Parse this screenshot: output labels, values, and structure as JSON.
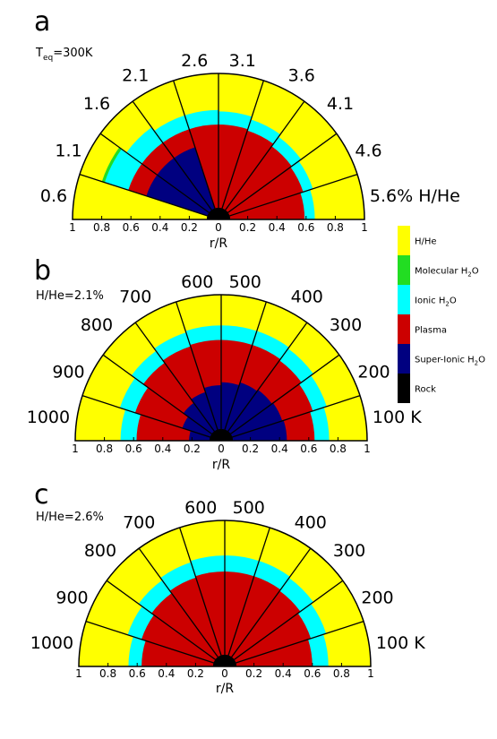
{
  "colors": {
    "hhe": "#ffff00",
    "molecular": "#22dd22",
    "ionic": "#00ffff",
    "plasma": "#cc0000",
    "superionic": "#000080",
    "rock": "#000000"
  },
  "legend": [
    {
      "key": "hhe",
      "label": "H/He"
    },
    {
      "key": "molecular",
      "label": "Molecular H",
      "sub": "2",
      "suffix": "O"
    },
    {
      "key": "ionic",
      "label": "Ionic H",
      "sub": "2",
      "suffix": "O"
    },
    {
      "key": "plasma",
      "label": "Plasma"
    },
    {
      "key": "superionic",
      "label": "Super-Ionic H",
      "sub": "2",
      "suffix": "O"
    },
    {
      "key": "rock",
      "label": "Rock"
    }
  ],
  "chart_data": [
    {
      "type": "polar-area",
      "panel_label": "a",
      "annotation": {
        "main": "T",
        "sub": "eq",
        "rest": "=300K"
      },
      "xlabel": "r/R",
      "tick_labels": [
        "1",
        "0.8",
        "0.6",
        "0.4",
        "0.2",
        "0",
        "0.2",
        "0.4",
        "0.6",
        "0.8",
        "1"
      ],
      "wedge_labels": [
        "0.6",
        "1.1",
        "1.6",
        "2.1",
        "2.6",
        "3.1",
        "3.6",
        "4.1",
        "4.6",
        "5.6% H/He"
      ],
      "wedges": [
        {
          "layers": [
            [
              "rock",
              0.08
            ],
            [
              "superionic",
              0.0
            ],
            [
              "plasma",
              0.0
            ],
            [
              "ionic",
              0.0
            ],
            [
              "molecular",
              0.0
            ],
            [
              "hhe",
              1.0
            ]
          ]
        },
        {
          "layers": [
            [
              "rock",
              0.08
            ],
            [
              "superionic",
              0.52
            ],
            [
              "plasma",
              0.65
            ],
            [
              "ionic",
              0.82
            ],
            [
              "molecular",
              0.84
            ],
            [
              "hhe",
              1.0
            ]
          ]
        },
        {
          "layers": [
            [
              "rock",
              0.08
            ],
            [
              "superionic",
              0.52
            ],
            [
              "plasma",
              0.65
            ],
            [
              "ionic",
              0.78
            ],
            [
              "hhe",
              1.0
            ]
          ]
        },
        {
          "layers": [
            [
              "rock",
              0.08
            ],
            [
              "superionic",
              0.52
            ],
            [
              "plasma",
              0.65
            ],
            [
              "ionic",
              0.75
            ],
            [
              "hhe",
              1.0
            ]
          ]
        },
        {
          "layers": [
            [
              "rock",
              0.08
            ],
            [
              "superionic",
              0.0
            ],
            [
              "plasma",
              0.65
            ],
            [
              "ionic",
              0.75
            ],
            [
              "hhe",
              1.0
            ]
          ]
        },
        {
          "layers": [
            [
              "rock",
              0.08
            ],
            [
              "plasma",
              0.65
            ],
            [
              "ionic",
              0.74
            ],
            [
              "hhe",
              1.0
            ]
          ]
        },
        {
          "layers": [
            [
              "rock",
              0.08
            ],
            [
              "plasma",
              0.64
            ],
            [
              "ionic",
              0.72
            ],
            [
              "hhe",
              1.0
            ]
          ]
        },
        {
          "layers": [
            [
              "rock",
              0.08
            ],
            [
              "plasma",
              0.62
            ],
            [
              "ionic",
              0.7
            ],
            [
              "hhe",
              1.0
            ]
          ]
        },
        {
          "layers": [
            [
              "rock",
              0.08
            ],
            [
              "plasma",
              0.61
            ],
            [
              "ionic",
              0.68
            ],
            [
              "hhe",
              1.0
            ]
          ]
        },
        {
          "layers": [
            [
              "rock",
              0.08
            ],
            [
              "plasma",
              0.59
            ],
            [
              "ionic",
              0.66
            ],
            [
              "hhe",
              1.0
            ]
          ]
        }
      ]
    },
    {
      "type": "polar-area",
      "panel_label": "b",
      "annotation": {
        "main": "H/He=2.1%"
      },
      "xlabel": "r/R",
      "tick_labels": [
        "1",
        "0.8",
        "0.6",
        "0.4",
        "0.2",
        "0",
        "0.2",
        "0.4",
        "0.6",
        "0.8",
        "1"
      ],
      "wedge_labels": [
        "1000",
        "900",
        "800",
        "700",
        "600",
        "500",
        "400",
        "300",
        "200",
        "100 K"
      ],
      "wedges": [
        {
          "layers": [
            [
              "rock",
              0.08
            ],
            [
              "superionic",
              0.22
            ],
            [
              "plasma",
              0.58
            ],
            [
              "ionic",
              0.69
            ],
            [
              "hhe",
              1.0
            ]
          ]
        },
        {
          "layers": [
            [
              "rock",
              0.08
            ],
            [
              "superionic",
              0.28
            ],
            [
              "plasma",
              0.62
            ],
            [
              "ionic",
              0.73
            ],
            [
              "hhe",
              1.0
            ]
          ]
        },
        {
          "layers": [
            [
              "rock",
              0.08
            ],
            [
              "superionic",
              0.32
            ],
            [
              "plasma",
              0.66
            ],
            [
              "ionic",
              0.76
            ],
            [
              "hhe",
              1.0
            ]
          ]
        },
        {
          "layers": [
            [
              "rock",
              0.08
            ],
            [
              "superionic",
              0.35
            ],
            [
              "plasma",
              0.68
            ],
            [
              "ionic",
              0.78
            ],
            [
              "hhe",
              1.0
            ]
          ]
        },
        {
          "layers": [
            [
              "rock",
              0.08
            ],
            [
              "superionic",
              0.38
            ],
            [
              "plasma",
              0.69
            ],
            [
              "ionic",
              0.79
            ],
            [
              "hhe",
              1.0
            ]
          ]
        },
        {
          "layers": [
            [
              "rock",
              0.08
            ],
            [
              "superionic",
              0.4
            ],
            [
              "plasma",
              0.69
            ],
            [
              "ionic",
              0.79
            ],
            [
              "hhe",
              1.0
            ]
          ]
        },
        {
          "layers": [
            [
              "rock",
              0.08
            ],
            [
              "superionic",
              0.42
            ],
            [
              "plasma",
              0.69
            ],
            [
              "ionic",
              0.79
            ],
            [
              "hhe",
              1.0
            ]
          ]
        },
        {
          "layers": [
            [
              "rock",
              0.08
            ],
            [
              "superionic",
              0.43
            ],
            [
              "plasma",
              0.68
            ],
            [
              "ionic",
              0.78
            ],
            [
              "hhe",
              1.0
            ]
          ]
        },
        {
          "layers": [
            [
              "rock",
              0.08
            ],
            [
              "superionic",
              0.44
            ],
            [
              "plasma",
              0.66
            ],
            [
              "ionic",
              0.76
            ],
            [
              "hhe",
              1.0
            ]
          ]
        },
        {
          "layers": [
            [
              "rock",
              0.08
            ],
            [
              "superionic",
              0.45
            ],
            [
              "plasma",
              0.64
            ],
            [
              "ionic",
              0.74
            ],
            [
              "hhe",
              1.0
            ]
          ]
        }
      ]
    },
    {
      "type": "polar-area",
      "panel_label": "c",
      "annotation": {
        "main": "H/He=2.6%"
      },
      "xlabel": "r/R",
      "tick_labels": [
        "1",
        "0.8",
        "0.6",
        "0.4",
        "0.2",
        "0",
        "0.2",
        "0.4",
        "0.6",
        "0.8",
        "1"
      ],
      "wedge_labels": [
        "1000",
        "900",
        "800",
        "700",
        "600",
        "500",
        "400",
        "300",
        "200",
        "100 K"
      ],
      "wedges": [
        {
          "layers": [
            [
              "rock",
              0.08
            ],
            [
              "plasma",
              0.57
            ],
            [
              "ionic",
              0.66
            ],
            [
              "hhe",
              1.0
            ]
          ]
        },
        {
          "layers": [
            [
              "rock",
              0.08
            ],
            [
              "plasma",
              0.6
            ],
            [
              "ionic",
              0.7
            ],
            [
              "hhe",
              1.0
            ]
          ]
        },
        {
          "layers": [
            [
              "rock",
              0.08
            ],
            [
              "plasma",
              0.62
            ],
            [
              "ionic",
              0.73
            ],
            [
              "hhe",
              1.0
            ]
          ]
        },
        {
          "layers": [
            [
              "rock",
              0.08
            ],
            [
              "plasma",
              0.64
            ],
            [
              "ionic",
              0.75
            ],
            [
              "hhe",
              1.0
            ]
          ]
        },
        {
          "layers": [
            [
              "rock",
              0.08
            ],
            [
              "plasma",
              0.65
            ],
            [
              "ionic",
              0.76
            ],
            [
              "hhe",
              1.0
            ]
          ]
        },
        {
          "layers": [
            [
              "rock",
              0.08
            ],
            [
              "plasma",
              0.65
            ],
            [
              "ionic",
              0.76
            ],
            [
              "hhe",
              1.0
            ]
          ]
        },
        {
          "layers": [
            [
              "rock",
              0.08
            ],
            [
              "plasma",
              0.65
            ],
            [
              "ionic",
              0.76
            ],
            [
              "hhe",
              1.0
            ]
          ]
        },
        {
          "layers": [
            [
              "rock",
              0.08
            ],
            [
              "plasma",
              0.64
            ],
            [
              "ionic",
              0.75
            ],
            [
              "hhe",
              1.0
            ]
          ]
        },
        {
          "layers": [
            [
              "rock",
              0.08
            ],
            [
              "plasma",
              0.62
            ],
            [
              "ionic",
              0.73
            ],
            [
              "hhe",
              1.0
            ]
          ]
        },
        {
          "layers": [
            [
              "rock",
              0.08
            ],
            [
              "plasma",
              0.6
            ],
            [
              "ionic",
              0.71
            ],
            [
              "hhe",
              1.0
            ]
          ]
        }
      ]
    }
  ]
}
